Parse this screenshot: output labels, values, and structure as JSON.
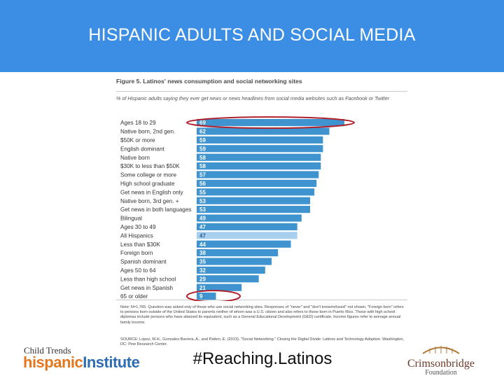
{
  "banner": {
    "title": "HISPANIC ADULTS AND SOCIAL MEDIA"
  },
  "figure": {
    "title": "Figure 5. Latinos' news consumption and social networking sites",
    "subtitle": "% of Hispanic adults saying they ever get news or news headlines from social media websites such as Facebook or Twitter",
    "note": "Note: N=1,765. Question was asked only of those who use social networking sites. Responses of \"never\" and \"don't know/refused\" not shown. \"Foreign born\" refers to persons born outside of the United States to parents neither of whom was a U.S. citizen and also refers to those born in Puerto Rico. Those with high school diplomas include persons who have attained its equivalent, such as a General Educational Development (GED) certificate. Income figures refer to average annual family income.",
    "source": "SOURCE: Lopez, M.H., Gonzalez-Barrera, A., and Patten, E. (2013). \"Social Networking.\" Closing the Digital Divide: Latinos and Technology Adoption. Washington, DC: Pew Research Center."
  },
  "chart_data": {
    "type": "bar",
    "orientation": "horizontal",
    "title": "Figure 5. Latinos' news consumption and social networking sites",
    "subtitle": "% of Hispanic adults saying they ever get news or news headlines from social media websites such as Facebook or Twitter",
    "categories": [
      "Ages 18 to 29",
      "Native born, 2nd gen.",
      "$50K or more",
      "English dominant",
      "Native born",
      "$30K to less than $50K",
      "Some college or more",
      "High school graduate",
      "Get news in English only",
      "Native born, 3rd gen. +",
      "Get news in both languages",
      "Bilingual",
      "Ages 30 to 49",
      "All Hispanics",
      "Less than $30K",
      "Foreign born",
      "Spanish dominant",
      "Ages 50 to 64",
      "Less than high school",
      "Get news in Spanish",
      "65 or older"
    ],
    "values": [
      69,
      62,
      59,
      59,
      58,
      58,
      57,
      56,
      55,
      53,
      53,
      49,
      47,
      47,
      44,
      38,
      35,
      32,
      29,
      21,
      9
    ],
    "highlight_category": "All Hispanics",
    "circled_categories": [
      "Ages 18 to 29",
      "65 or older"
    ],
    "xlim": [
      0,
      70
    ],
    "colors": {
      "bar": "#3f94d0",
      "highlight_bar": "#a9cfee",
      "circle": "#b0202a",
      "value_label": "#ffffff"
    }
  },
  "footer": {
    "left_logo_top": "Child Trends",
    "left_logo_hispanic": "hispanic",
    "left_logo_institute": "Institute",
    "hashtag": "#Reaching.Latinos",
    "right_logo_name": "Crimsonbridge",
    "right_logo_foundation": "Foundation"
  }
}
